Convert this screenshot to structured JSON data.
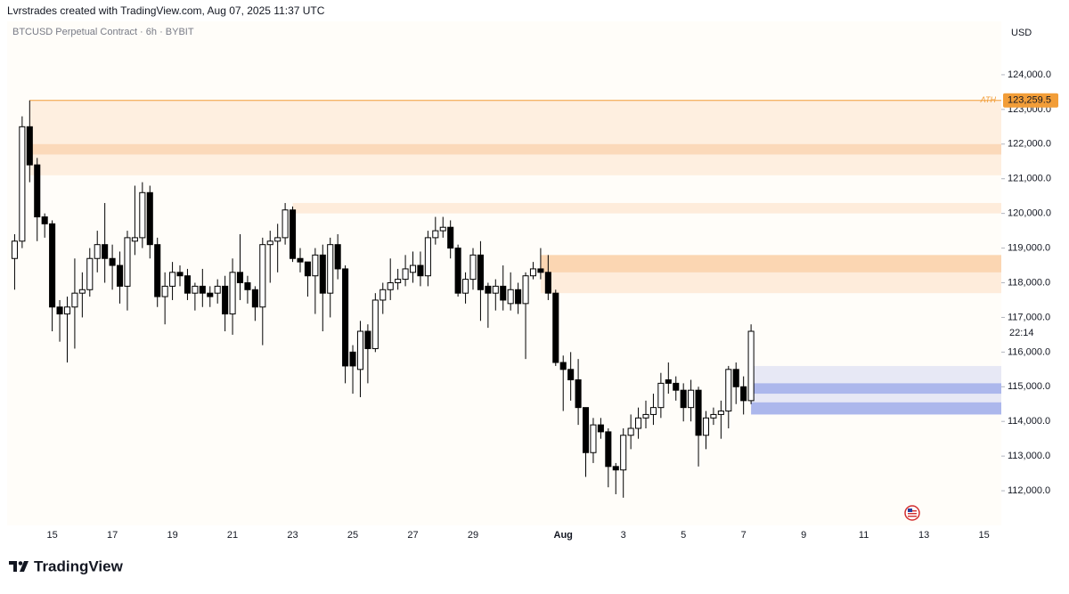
{
  "header": {
    "credit": "Lvrstrades created with TradingView.com, Aug 07, 2025 11:37 UTC"
  },
  "footer": {
    "brand": "TradingView"
  },
  "chart_data": {
    "type": "candlestick",
    "title": "BTCUSD Perpetual Contract · 6h · BYBIT",
    "y_axis_label": "USD",
    "countdown": "22:14",
    "up_color": "#ffffff",
    "down_color": "#000000",
    "grid": false,
    "categories": [
      null,
      null,
      null,
      null,
      null,
      "15",
      null,
      null,
      null,
      null,
      null,
      null,
      null,
      "17",
      null,
      null,
      null,
      null,
      null,
      null,
      null,
      "19",
      null,
      null,
      null,
      null,
      null,
      null,
      null,
      "21",
      null,
      null,
      null,
      null,
      null,
      null,
      null,
      "23",
      null,
      null,
      null,
      null,
      null,
      null,
      null,
      "25",
      null,
      null,
      null,
      null,
      null,
      null,
      null,
      "27",
      null,
      null,
      null,
      null,
      null,
      null,
      null,
      "29",
      null,
      null,
      null,
      null,
      null,
      null,
      null,
      null,
      null,
      null,
      null,
      "Aug",
      null,
      null,
      null,
      null,
      null,
      null,
      null,
      "3",
      null,
      null,
      null,
      null,
      null,
      null,
      null,
      "5",
      null,
      null,
      null,
      null,
      null,
      null,
      null,
      "7",
      null,
      null,
      null,
      null,
      null,
      null,
      null,
      "9",
      null,
      null,
      null,
      null,
      null,
      null,
      null,
      "11",
      null,
      null,
      null,
      null,
      null,
      null,
      null,
      "13",
      null,
      null,
      null,
      null,
      null,
      null,
      null,
      "15",
      null
    ],
    "open": [
      118700,
      119200,
      122500,
      121400,
      119900,
      119700,
      117300,
      117100,
      117300,
      117700,
      117800,
      118700,
      119100,
      118700,
      118500,
      117900,
      119200,
      119300,
      120600,
      119100,
      117600,
      117900,
      118300,
      118200,
      117700,
      117900,
      117700,
      117700,
      117900,
      117100,
      118300,
      118000,
      117800,
      117300,
      119100,
      119200,
      119300,
      120100,
      118700,
      118600,
      118200,
      118800,
      117700,
      119100,
      118400,
      116000,
      115500,
      116600,
      116100,
      117500,
      117800,
      118000,
      118100,
      118300,
      118500,
      118200,
      119300,
      119500,
      119600,
      119000,
      117700,
      118100,
      118800,
      117900,
      117700,
      117900,
      117400,
      117800,
      117400,
      118200,
      118400,
      118300,
      117700,
      115700,
      115500,
      115200,
      114400,
      113100,
      113900,
      113700,
      112700,
      112600,
      113600,
      113800,
      114100,
      114200,
      114400,
      115200,
      115100,
      114900,
      114400,
      114900,
      113600,
      114100,
      114200,
      114300,
      115500,
      115000,
      114600,
      null,
      null,
      null,
      null,
      null,
      null,
      null,
      null,
      null,
      null,
      null,
      null,
      null,
      null,
      null,
      null,
      null,
      null,
      null,
      null,
      null,
      null,
      null,
      null,
      null,
      null,
      null,
      null,
      null,
      null,
      null,
      null
    ],
    "high": [
      119400,
      122800,
      123259.5,
      121600,
      120000,
      119800,
      117500,
      117600,
      118700,
      118300,
      119000,
      119500,
      120300,
      119100,
      118900,
      119500,
      120800,
      120900,
      120800,
      119300,
      118300,
      118600,
      118500,
      118400,
      118000,
      118400,
      117900,
      118100,
      118200,
      118700,
      119400,
      118200,
      117900,
      119300,
      119500,
      119700,
      120300,
      120200,
      119000,
      118600,
      119000,
      119100,
      119300,
      119400,
      118500,
      116200,
      116900,
      116800,
      117700,
      118000,
      118700,
      118400,
      118800,
      118900,
      118900,
      119500,
      119900,
      119900,
      119800,
      119100,
      118300,
      119000,
      119200,
      118000,
      118100,
      118500,
      118300,
      118000,
      118300,
      118600,
      119000,
      118800,
      117800,
      115900,
      116000,
      115800,
      114400,
      114100,
      114100,
      113800,
      112800,
      113800,
      114200,
      114400,
      114600,
      114800,
      115400,
      115700,
      115300,
      115100,
      115200,
      115000,
      114300,
      114400,
      114600,
      115600,
      115700,
      115300,
      116800,
      null,
      null,
      null,
      null,
      null,
      null,
      null,
      null,
      null,
      null,
      null,
      null,
      null,
      null,
      null,
      null,
      null,
      null,
      null,
      null,
      null,
      null,
      null,
      null,
      null,
      null,
      null,
      null,
      null,
      null,
      null,
      null
    ],
    "low": [
      117800,
      119000,
      120900,
      119200,
      119300,
      116600,
      116300,
      115700,
      116100,
      117000,
      117600,
      118300,
      118000,
      117800,
      117400,
      117200,
      118800,
      119000,
      118700,
      117300,
      116800,
      117500,
      117900,
      117500,
      117200,
      117300,
      117300,
      117400,
      116600,
      116500,
      117500,
      117400,
      116900,
      116200,
      118000,
      118300,
      119100,
      118600,
      118300,
      117600,
      117100,
      116600,
      117000,
      118100,
      115100,
      114800,
      114700,
      115100,
      116000,
      117100,
      117500,
      117800,
      117900,
      118000,
      117900,
      117900,
      119100,
      119300,
      118700,
      117600,
      117400,
      117800,
      116900,
      116700,
      117200,
      117200,
      117200,
      117100,
      115800,
      118100,
      118100,
      117500,
      115600,
      114300,
      114600,
      113900,
      112400,
      112800,
      113500,
      112100,
      111900,
      111800,
      113200,
      113500,
      113800,
      113900,
      114100,
      114800,
      114600,
      114000,
      114000,
      112700,
      113200,
      113900,
      113500,
      113800,
      114500,
      114200,
      114500,
      null,
      null,
      null,
      null,
      null,
      null,
      null,
      null,
      null,
      null,
      null,
      null,
      null,
      null,
      null,
      null,
      null,
      null,
      null,
      null,
      null,
      null,
      null,
      null,
      null,
      null,
      null,
      null,
      null,
      null,
      null,
      null
    ],
    "close": [
      119200,
      122500,
      121400,
      119900,
      119700,
      117300,
      117100,
      117300,
      117700,
      117800,
      118700,
      119100,
      118700,
      118500,
      117900,
      119300,
      119300,
      120600,
      119100,
      117600,
      117900,
      118300,
      118200,
      117700,
      117900,
      117700,
      117600,
      117900,
      117100,
      118300,
      118000,
      117800,
      117300,
      119100,
      119200,
      119300,
      120100,
      118700,
      118600,
      118200,
      118800,
      117700,
      119100,
      118400,
      115600,
      115600,
      116600,
      116100,
      117500,
      117800,
      118000,
      118100,
      118400,
      118500,
      118200,
      119300,
      119500,
      119600,
      119000,
      117700,
      118100,
      118800,
      117800,
      117700,
      117900,
      117500,
      117800,
      117400,
      118200,
      118400,
      118300,
      117700,
      115700,
      115500,
      115200,
      114400,
      113100,
      113900,
      113700,
      112700,
      112600,
      113600,
      113800,
      114100,
      114200,
      114400,
      115100,
      115100,
      114900,
      114400,
      114900,
      113600,
      114100,
      114200,
      114300,
      115500,
      115000,
      114600,
      116600,
      null,
      null,
      null,
      null,
      null,
      null,
      null,
      null,
      null,
      null,
      null,
      null,
      null,
      null,
      null,
      null,
      null,
      null,
      null,
      null,
      null,
      null,
      null,
      null,
      null,
      null,
      null,
      null,
      null,
      null,
      null,
      null
    ],
    "ylim": [
      111000,
      125000
    ],
    "yticks": [
      {
        "value": 112000,
        "label": "112,000.0"
      },
      {
        "value": 113000,
        "label": "113,000.0"
      },
      {
        "value": 114000,
        "label": "114,000.0"
      },
      {
        "value": 115000,
        "label": "115,000.0"
      },
      {
        "value": 116000,
        "label": "116,000.0"
      },
      {
        "value": 117000,
        "label": "117,000.0"
      },
      {
        "value": 118000,
        "label": "118,000.0"
      },
      {
        "value": 119000,
        "label": "119,000.0"
      },
      {
        "value": 120000,
        "label": "120,000.0"
      },
      {
        "value": 121000,
        "label": "121,000.0"
      },
      {
        "value": 122000,
        "label": "122,000.0"
      },
      {
        "value": 123000,
        "label": "123,000.0"
      },
      {
        "value": 124000,
        "label": "124,000.0"
      }
    ],
    "ath": {
      "label": "ATH",
      "value": 123259.5,
      "value_label": "123,259.5",
      "from": 2,
      "color": "#f29d38"
    },
    "zones": [
      {
        "from": 2,
        "low": 121100,
        "high": 123259.5,
        "color": "rgba(250,170,100,0.17)"
      },
      {
        "from": 2,
        "low": 121700,
        "high": 122000,
        "color": "rgba(245,150,70,0.25)"
      },
      {
        "from": 37,
        "low": 120000,
        "high": 120300,
        "color": "rgba(250,170,100,0.2)"
      },
      {
        "from": 70,
        "low": 117700,
        "high": 118300,
        "color": "rgba(250,170,100,0.2)"
      },
      {
        "from": 70,
        "low": 118300,
        "high": 118800,
        "color": "rgba(245,160,80,0.42)"
      },
      {
        "from": 98,
        "low": 114200,
        "high": 115600,
        "color": "rgba(120,140,230,0.18)"
      },
      {
        "from": 98,
        "low": 114800,
        "high": 115100,
        "color": "rgba(90,115,225,0.42)"
      },
      {
        "from": 98,
        "low": 114200,
        "high": 114550,
        "color": "rgba(90,115,225,0.42)"
      }
    ]
  }
}
